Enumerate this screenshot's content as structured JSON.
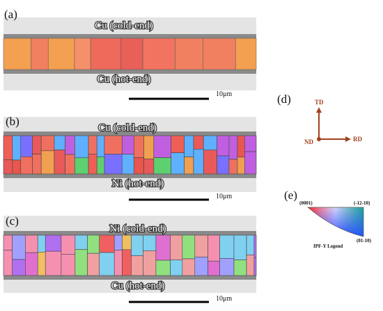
{
  "panels": [
    {
      "label": "(a)",
      "top_label": "Cu (cold-end)",
      "bottom_label": "Cu (hot-end)",
      "scale_bar": "10μm"
    },
    {
      "label": "(b)",
      "top_label": "Cu (cold-end)",
      "bottom_label": "Ni (hot-end)",
      "scale_bar": "10μm"
    },
    {
      "label": "(c)",
      "top_label": "Ni (cold-end)",
      "bottom_label": "Cu (hot-end)",
      "scale_bar": "10μm"
    }
  ],
  "axes": {
    "label": "(d)",
    "td": "TD",
    "nd": "ND",
    "rd": "RD"
  },
  "legend": {
    "label": "(e)",
    "corner_left": "(0001)",
    "corner_right": "(-12-10)",
    "corner_bottom": "(01-10)",
    "title": "IPF-Y Legend"
  }
}
